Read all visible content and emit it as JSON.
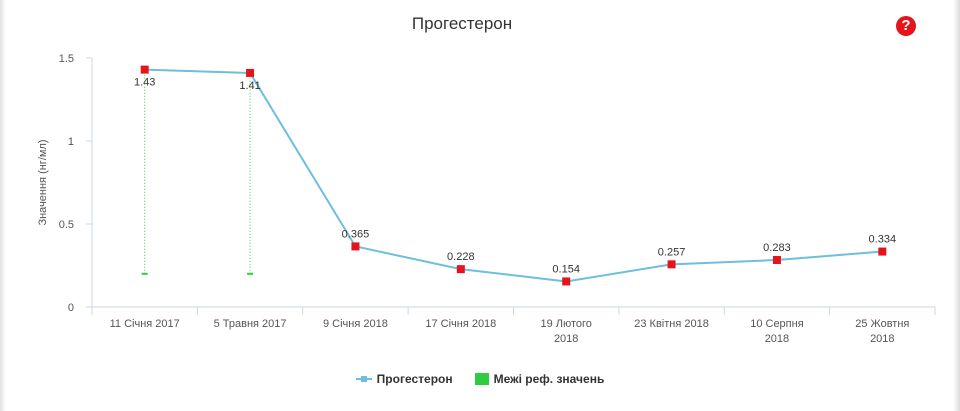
{
  "header": {
    "title": "Прогестерон",
    "help_glyph": "?"
  },
  "legend": {
    "series_label": "Прогестерон",
    "ref_label": "Межі реф. значень"
  },
  "colors": {
    "line": "#6cbfdf",
    "marker": "#e3141b",
    "ref": "#2ecc40",
    "grid": "#e6e6e6",
    "axis": "#ccd6eb"
  },
  "chart_data": {
    "type": "line",
    "title": "Прогестерон",
    "xlabel": "",
    "ylabel": "Значення (нг/мл)",
    "ylim": [
      0,
      1.5
    ],
    "yticks": [
      "0",
      "0.5",
      "1",
      "1.5"
    ],
    "categories": [
      [
        "11 Січня 2017"
      ],
      [
        "5 Травня 2017"
      ],
      [
        "9 Січня 2018"
      ],
      [
        "17 Січня 2018"
      ],
      [
        "19 Лютого",
        "2018"
      ],
      [
        "23 Квітня 2018"
      ],
      [
        "10 Серпня",
        "2018"
      ],
      [
        "25 Жовтня",
        "2018"
      ]
    ],
    "series": [
      {
        "name": "Прогестерон",
        "values": [
          1.43,
          1.41,
          0.365,
          0.228,
          0.154,
          0.257,
          0.283,
          0.334
        ],
        "labels": [
          "1.43",
          "1.41",
          "0.365",
          "0.228",
          "0.154",
          "0.257",
          "0.283",
          "0.334"
        ]
      },
      {
        "name": "Межі реф. значень",
        "ranges": [
          [
            0.2,
            1.43
          ],
          [
            0.2,
            1.41
          ],
          null,
          null,
          null,
          null,
          null,
          null
        ]
      }
    ],
    "grid": false,
    "legend_position": "bottom-center"
  }
}
